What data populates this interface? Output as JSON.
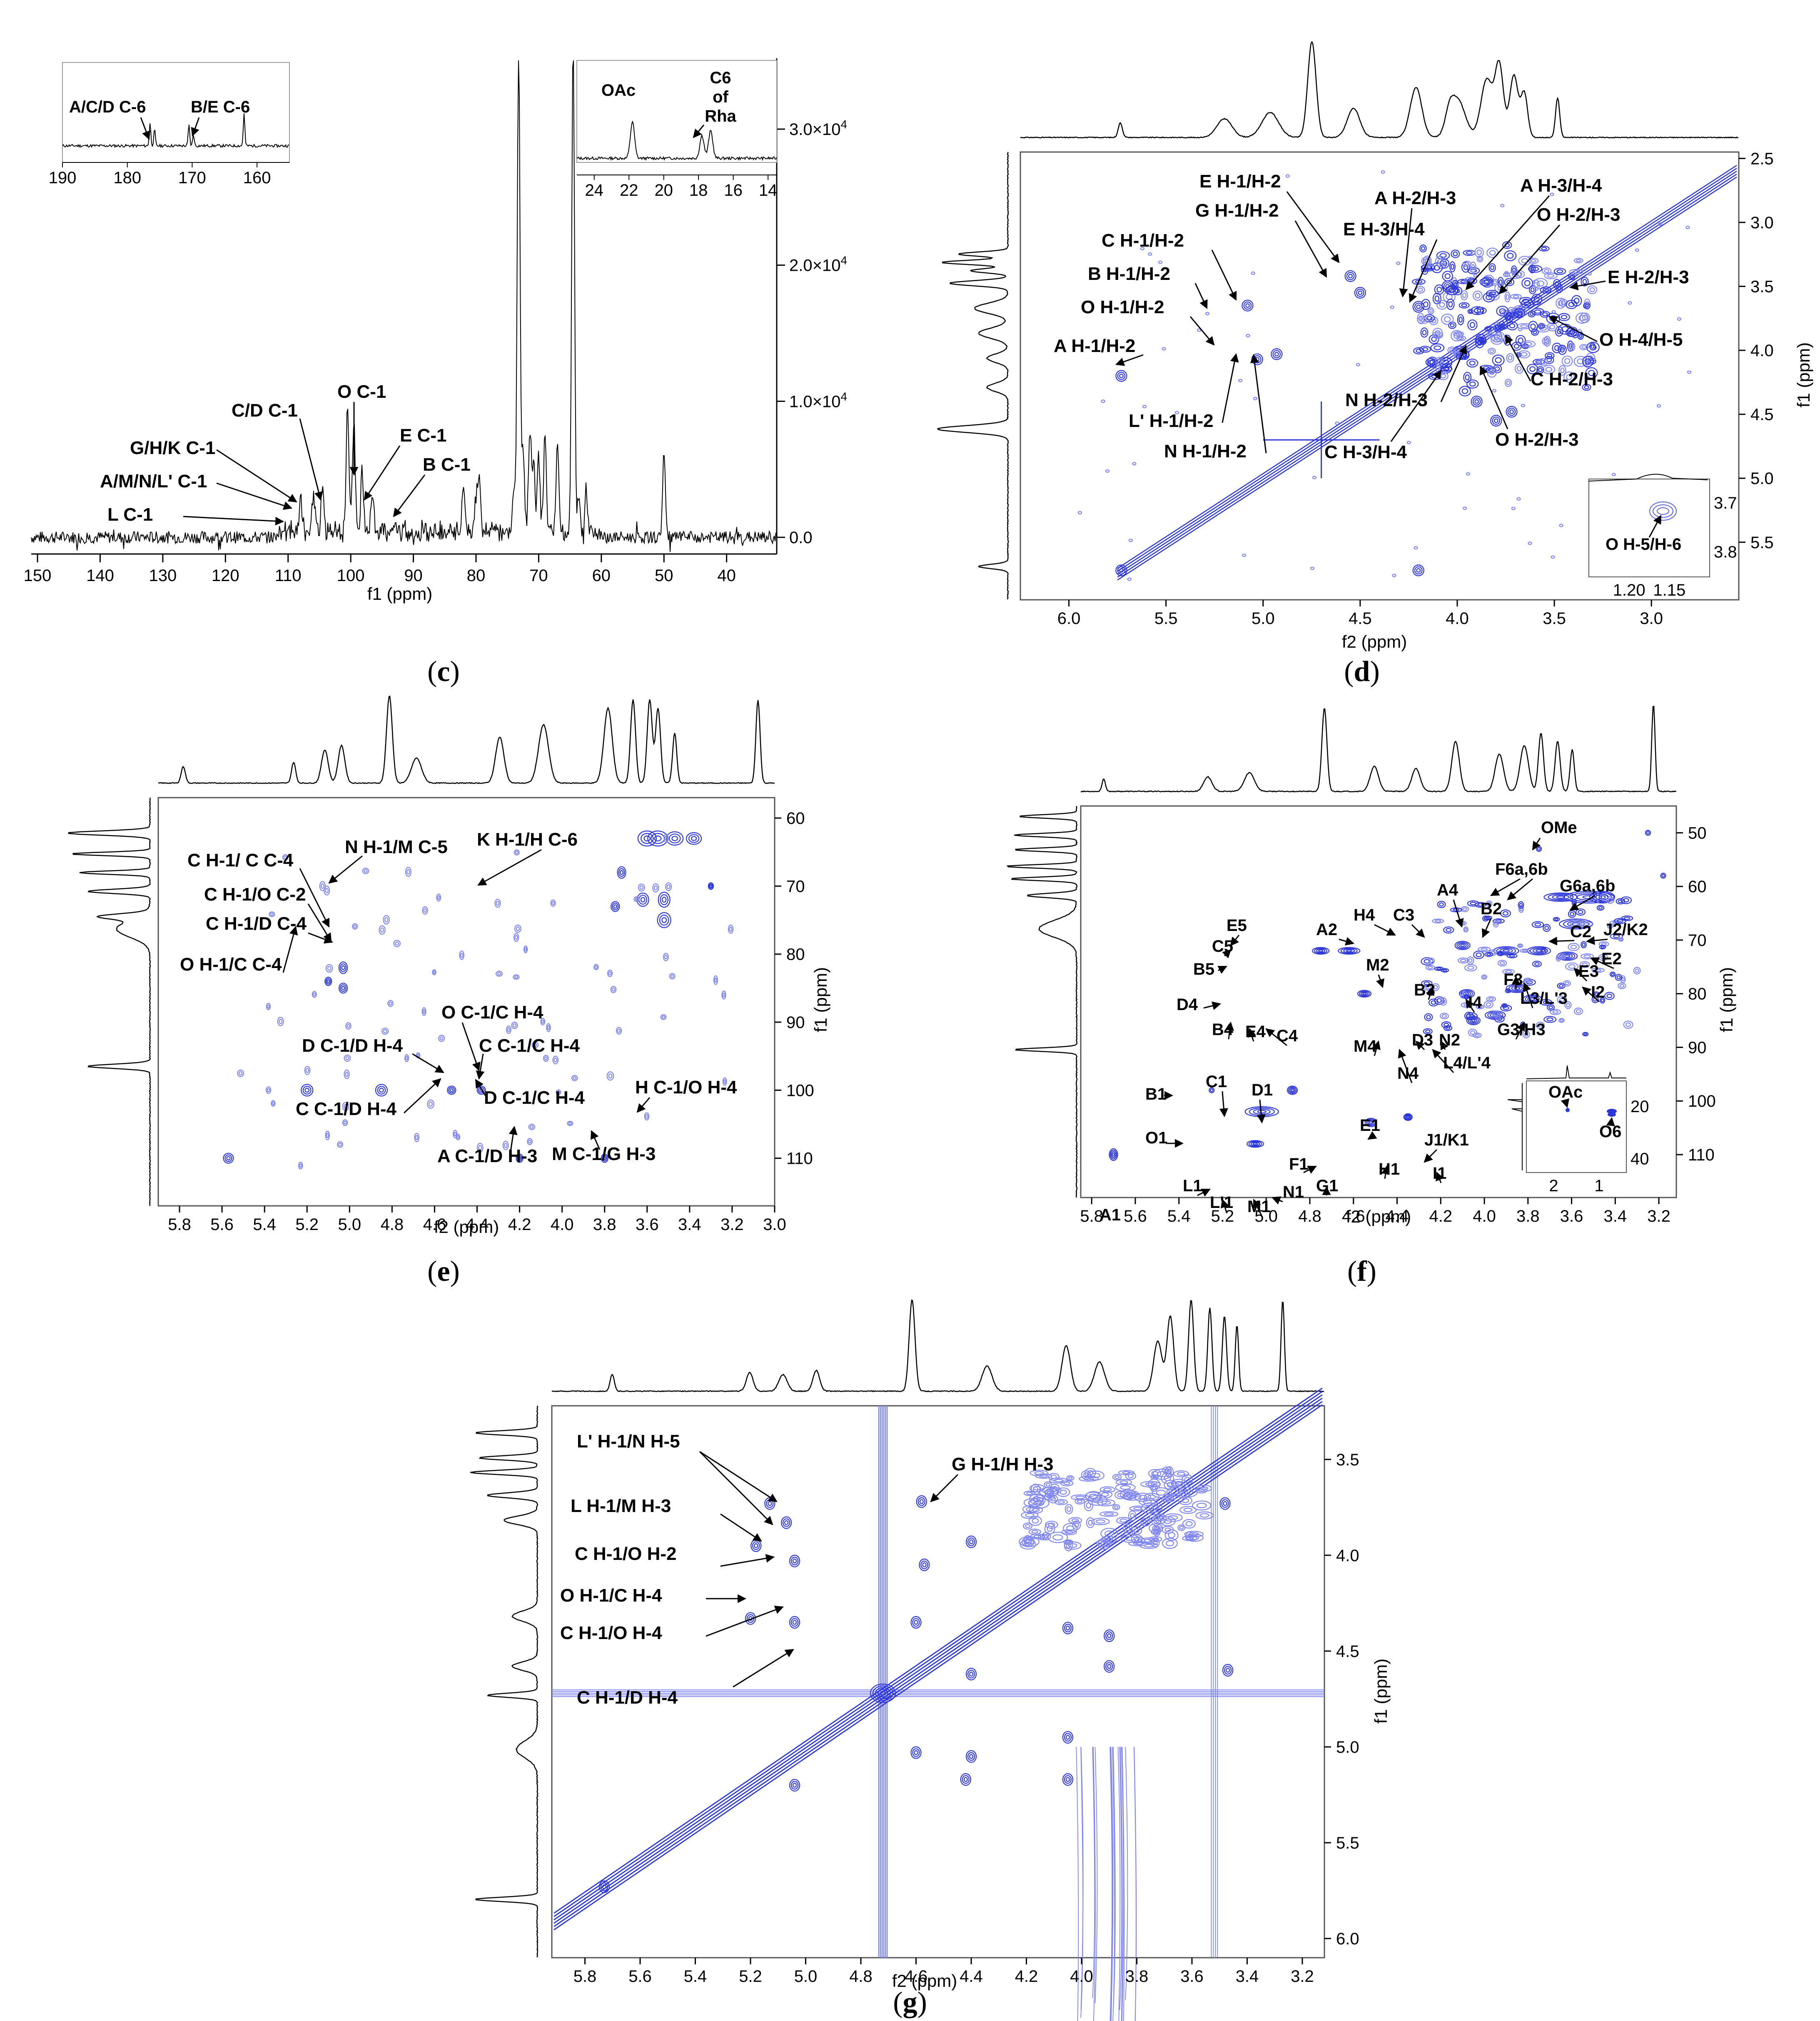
{
  "panel_labels": {
    "c": {
      "open": "(",
      "letter": "c",
      "close": ")"
    },
    "d": {
      "open": "(",
      "letter": "d",
      "close": ")"
    },
    "e": {
      "open": "(",
      "letter": "e",
      "close": ")"
    },
    "f": {
      "open": "(",
      "letter": "f",
      "close": ")"
    },
    "g": {
      "open": "(",
      "letter": "g",
      "close": ")"
    }
  },
  "colors": {
    "contour": "#2b35d8",
    "contour_light": "#7f86f0",
    "trace": "#000000"
  },
  "chart_data": [
    {
      "id": "c",
      "type": "line",
      "xlabel": "f1 (ppm)",
      "xlim": [
        151,
        32
      ],
      "x_ticks": [
        "150",
        "140",
        "130",
        "120",
        "110",
        "100",
        "90",
        "80",
        "70",
        "60",
        "50",
        "40"
      ],
      "x_tick_values": [
        150,
        140,
        130,
        120,
        110,
        100,
        90,
        80,
        70,
        60,
        50,
        40
      ],
      "y_ticks": [
        "0.0",
        "1.0×10",
        "2.0×10",
        "3.0×10"
      ],
      "y_tick_exp": "4",
      "y_tick_values": [
        0,
        10000,
        20000,
        30000
      ],
      "ylim": [
        -1500,
        36000
      ],
      "peaks": [
        [
          108,
          2500
        ],
        [
          106,
          3000
        ],
        [
          104.5,
          3600
        ],
        [
          100.5,
          9000
        ],
        [
          99.5,
          8000
        ],
        [
          98.2,
          4200
        ],
        [
          96.5,
          3000
        ],
        [
          82,
          3500
        ],
        [
          80,
          2500
        ],
        [
          79.5,
          3800
        ],
        [
          74,
          3000
        ],
        [
          73.2,
          36000
        ],
        [
          72.5,
          5500
        ],
        [
          71.4,
          7500
        ],
        [
          70.8,
          4800
        ],
        [
          70,
          5500
        ],
        [
          69,
          6800
        ],
        [
          67,
          6500
        ],
        [
          64.5,
          36000
        ],
        [
          63.6,
          2800
        ],
        [
          62.4,
          2800
        ],
        [
          50,
          6300
        ]
      ],
      "annotations": [
        "L C-1",
        "A/M/N/L' C-1",
        "G/H/K C-1",
        "C/D C-1",
        "O C-1",
        "E C-1",
        "B C-1"
      ],
      "insets": [
        {
          "id": "c_inset1",
          "type": "line",
          "xlim": [
            190,
            155
          ],
          "x_ticks": [
            "190",
            "180",
            "170",
            "160"
          ],
          "x_tick_values": [
            190,
            180,
            170,
            160
          ],
          "peaks": [
            [
              176.5,
              1.0
            ],
            [
              175.8,
              0.7
            ],
            [
              170.5,
              0.9
            ],
            [
              169.8,
              0.5
            ],
            [
              162,
              1.4
            ]
          ],
          "annotations": [
            "A/C/D C-6",
            "B/E C-6"
          ]
        },
        {
          "id": "c_inset2",
          "type": "line",
          "xlim": [
            25,
            13.5
          ],
          "x_ticks": [
            "24",
            "22",
            "20",
            "18",
            "16",
            "14"
          ],
          "x_tick_values": [
            24,
            22,
            20,
            18,
            16,
            14
          ],
          "peaks": [
            [
              21.8,
              1.6
            ],
            [
              17.8,
              1.0
            ],
            [
              17.3,
              1.2
            ]
          ],
          "annotations": [
            "OAc",
            "C6",
            "of",
            "Rha"
          ]
        }
      ]
    },
    {
      "id": "d",
      "type": "heatmap",
      "xlabel": "f2 (ppm)",
      "ylabel": "f1 (ppm)",
      "xlim": [
        6.25,
        2.55
      ],
      "ylim": [
        2.45,
        5.95
      ],
      "x_ticks": [
        "6.0",
        "5.5",
        "5.0",
        "4.5",
        "4.0",
        "3.5",
        "3.0"
      ],
      "x_tick_values": [
        6.0,
        5.5,
        5.0,
        4.5,
        4.0,
        3.5,
        3.0
      ],
      "y_ticks": [
        "2.5",
        "3.0",
        "3.5",
        "4.0",
        "4.5",
        "5.0",
        "5.5"
      ],
      "y_tick_values": [
        2.5,
        3.0,
        3.5,
        4.0,
        4.5,
        5.0,
        5.5
      ],
      "annotations": [
        "E H-1/H-2",
        "G H-1/H-2",
        "C H-1/H-2",
        "B H-1/H-2",
        "O H-1/H-2",
        "A H-1/H-2",
        "A H-2/H-3",
        "E H-3/H-4",
        "A H-3/H-4",
        "O H-2/H-3",
        "E H-2/H-3",
        "O H-4/H-5",
        "C H-2/H-3",
        "N H-2/H-3",
        "L' H-1/H-2",
        "N H-1/H-2",
        "C H-3/H-4",
        "O H-2/H-3"
      ],
      "inset": {
        "xlim": [
          1.25,
          1.1
        ],
        "ylim": [
          3.65,
          3.85
        ],
        "x_ticks": [
          "1.20",
          "1.15"
        ],
        "x_tick_values": [
          1.2,
          1.15
        ],
        "y_ticks": [
          "3.7",
          "3.8"
        ],
        "y_tick_values": [
          3.7,
          3.8
        ],
        "label": "O H-5/H-6"
      }
    },
    {
      "id": "e",
      "type": "heatmap",
      "xlabel": "f2 (ppm)",
      "ylabel": "f1 (ppm)",
      "xlim": [
        5.9,
        3.0
      ],
      "ylim": [
        57,
        117
      ],
      "x_ticks": [
        "5.8",
        "5.6",
        "5.4",
        "5.2",
        "5.0",
        "4.8",
        "4.6",
        "4.4",
        "4.2",
        "4.0",
        "3.8",
        "3.6",
        "3.4",
        "3.2",
        "3.0"
      ],
      "x_tick_values": [
        5.8,
        5.6,
        5.4,
        5.2,
        5.0,
        4.8,
        4.6,
        4.4,
        4.2,
        4.0,
        3.8,
        3.6,
        3.4,
        3.2,
        3.0
      ],
      "y_ticks": [
        "60",
        "70",
        "80",
        "90",
        "100",
        "110"
      ],
      "y_tick_values": [
        60,
        70,
        80,
        90,
        100,
        110
      ],
      "annotations": [
        "C H-1/ C C-4",
        "N H-1/M C-5",
        "K H-1/H C-6",
        "C H-1/O C-2",
        "C H-1/D C-4",
        "O H-1/C C-4",
        "O C-1/C H-4",
        "D C-1/D H-4",
        "C C-1/C H-4",
        "C C-1/D H-4",
        "D C-1/C H-4",
        "H C-1/O H-4",
        "A C-1/D H-3",
        "M C-1/G H-3"
      ]
    },
    {
      "id": "f",
      "type": "heatmap",
      "xlabel": "f2 (ppm)",
      "ylabel": "f1 (ppm)",
      "xlim": [
        5.85,
        3.12
      ],
      "ylim": [
        45,
        118
      ],
      "x_ticks": [
        "5.8",
        "5.6",
        "5.4",
        "5.2",
        "5.0",
        "4.8",
        "4.6",
        "4.4",
        "4.2",
        "4.0",
        "3.8",
        "3.6",
        "3.4",
        "3.2"
      ],
      "x_tick_values": [
        5.8,
        5.6,
        5.4,
        5.2,
        5.0,
        4.8,
        4.6,
        4.4,
        4.2,
        4.0,
        3.8,
        3.6,
        3.4,
        3.2
      ],
      "y_ticks": [
        "50",
        "60",
        "70",
        "80",
        "90",
        "100",
        "110"
      ],
      "y_tick_values": [
        50,
        60,
        70,
        80,
        90,
        100,
        110
      ],
      "annotations": [
        "OMe",
        "F6a,6b",
        "G6a,6b",
        "A4",
        "B2",
        "H4",
        "C3",
        "C2",
        "J2/K2",
        "A2",
        "E5",
        "C5",
        "B5",
        "E2",
        "E3",
        "I2",
        "M2",
        "F3",
        "L3/L'3",
        "B3",
        "D4",
        "B4",
        "E4",
        "C4",
        "I4",
        "G3/H3",
        "M4",
        "D3",
        "N2",
        "N4",
        "L4/L'4",
        "B1",
        "C1",
        "D1",
        "E1",
        "O1",
        "J1/K1",
        "F1",
        "H1",
        "I1",
        "G1",
        "L1",
        "L'1",
        "M1",
        "N1",
        "A1"
      ],
      "inset": {
        "xlim": [
          2.6,
          0.4
        ],
        "ylim": [
          10,
          45
        ],
        "x_ticks": [
          "2",
          "1"
        ],
        "x_tick_values": [
          2,
          1
        ],
        "y_ticks": [
          "20",
          "40"
        ],
        "y_tick_values": [
          20,
          40
        ],
        "labels": [
          "OAc",
          "O6"
        ]
      }
    },
    {
      "id": "g",
      "type": "heatmap",
      "xlabel": "f2 (ppm)",
      "ylabel": "f1 (ppm)",
      "xlim": [
        5.92,
        3.12
      ],
      "ylim": [
        3.22,
        6.1
      ],
      "x_ticks": [
        "5.8",
        "5.6",
        "5.4",
        "5.2",
        "5.0",
        "4.8",
        "4.6",
        "4.4",
        "4.2",
        "4.0",
        "3.8",
        "3.6",
        "3.4",
        "3.2"
      ],
      "x_tick_values": [
        5.8,
        5.6,
        5.4,
        5.2,
        5.0,
        4.8,
        4.6,
        4.4,
        4.2,
        4.0,
        3.8,
        3.6,
        3.4,
        3.2
      ],
      "y_ticks": [
        "3.5",
        "4.0",
        "4.5",
        "5.0",
        "5.5",
        "6.0"
      ],
      "y_tick_values": [
        3.5,
        4.0,
        4.5,
        5.0,
        5.5,
        6.0
      ],
      "annotations": [
        "L' H-1/N H-5",
        "G H-1/H H-3",
        "L H-1/M H-3",
        "C H-1/O H-2",
        "O H-1/C H-4",
        "C H-1/O H-4",
        "C H-1/D H-4"
      ]
    }
  ]
}
